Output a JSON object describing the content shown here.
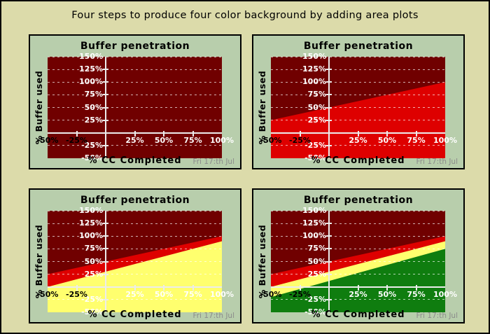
{
  "figure": {
    "title": "Four steps to produce four color background by adding area plots",
    "background": "#DCDBAA",
    "border_color": "#000000"
  },
  "colors": {
    "panel_bg": "#B8CEAC",
    "panel_border": "#000000",
    "zone_dark_red": "#700000",
    "zone_red": "#DE0000",
    "zone_yellow": "#FFFF6E",
    "zone_green": "#0F7D0F",
    "axis_line": "#ECECEC",
    "grid_line": "rgba(255,255,255,0.68)",
    "tick_label_white": "#FFFFFF",
    "tick_label_black": "#000000",
    "title_text": "#000000",
    "date_text": "#8B8B8B"
  },
  "subplot_common": {
    "title": "Buffer penetration",
    "xlabel": "% CC Completed",
    "ylabel": "% Buffer used",
    "date_label": "Fri 17:th Jul",
    "xlim": [
      -50,
      100
    ],
    "ylim": [
      -50,
      150
    ],
    "x_ticks": [
      {
        "value": -50,
        "label": "-50%",
        "color": "#000000"
      },
      {
        "value": -25,
        "label": "-25%",
        "color": "#000000"
      },
      {
        "value": 25,
        "label": "25%",
        "color": "#FFFFFF"
      },
      {
        "value": 50,
        "label": "50%",
        "color": "#FFFFFF"
      },
      {
        "value": 75,
        "label": "75%",
        "color": "#FFFFFF"
      },
      {
        "value": 100,
        "label": "100%",
        "color": "#FFFFFF"
      }
    ],
    "y_ticks": [
      {
        "value": 150,
        "label": "150%"
      },
      {
        "value": 125,
        "label": "125%"
      },
      {
        "value": 100,
        "label": "100%"
      },
      {
        "value": 75,
        "label": "75%"
      },
      {
        "value": 50,
        "label": "50%"
      },
      {
        "value": 25,
        "label": "25%"
      },
      {
        "value": -25,
        "label": "-25%"
      },
      {
        "value": -50,
        "label": "-50%"
      }
    ],
    "grid_y_values": [
      150,
      125,
      100,
      75,
      50,
      25,
      -25
    ],
    "x_tick_marks": [
      -25,
      25,
      50,
      75
    ],
    "y_tick_marks": [
      125,
      100,
      75,
      50,
      25,
      -25
    ]
  },
  "chart_data": [
    {
      "type": "area",
      "step": 1,
      "title": "Buffer penetration",
      "background_zone": "zone_dark_red",
      "layers": []
    },
    {
      "type": "area",
      "step": 2,
      "title": "Buffer penetration",
      "background_zone": "zone_dark_red",
      "layers": [
        "red"
      ]
    },
    {
      "type": "area",
      "step": 3,
      "title": "Buffer penetration",
      "background_zone": "zone_dark_red",
      "layers": [
        "red",
        "yellow"
      ]
    },
    {
      "type": "area",
      "step": 4,
      "title": "Buffer penetration",
      "background_zone": "zone_dark_red",
      "layers": [
        "red",
        "yellow",
        "green"
      ]
    }
  ],
  "boundary_lines": {
    "red": {
      "x": [
        -50,
        100
      ],
      "y": [
        25,
        100
      ],
      "color_key": "zone_red"
    },
    "yellow": {
      "x": [
        -50,
        100
      ],
      "y": [
        0,
        90
      ],
      "color_key": "zone_yellow"
    },
    "green": {
      "x": [
        -50,
        100
      ],
      "y": [
        -20,
        75
      ],
      "color_key": "zone_green"
    }
  }
}
